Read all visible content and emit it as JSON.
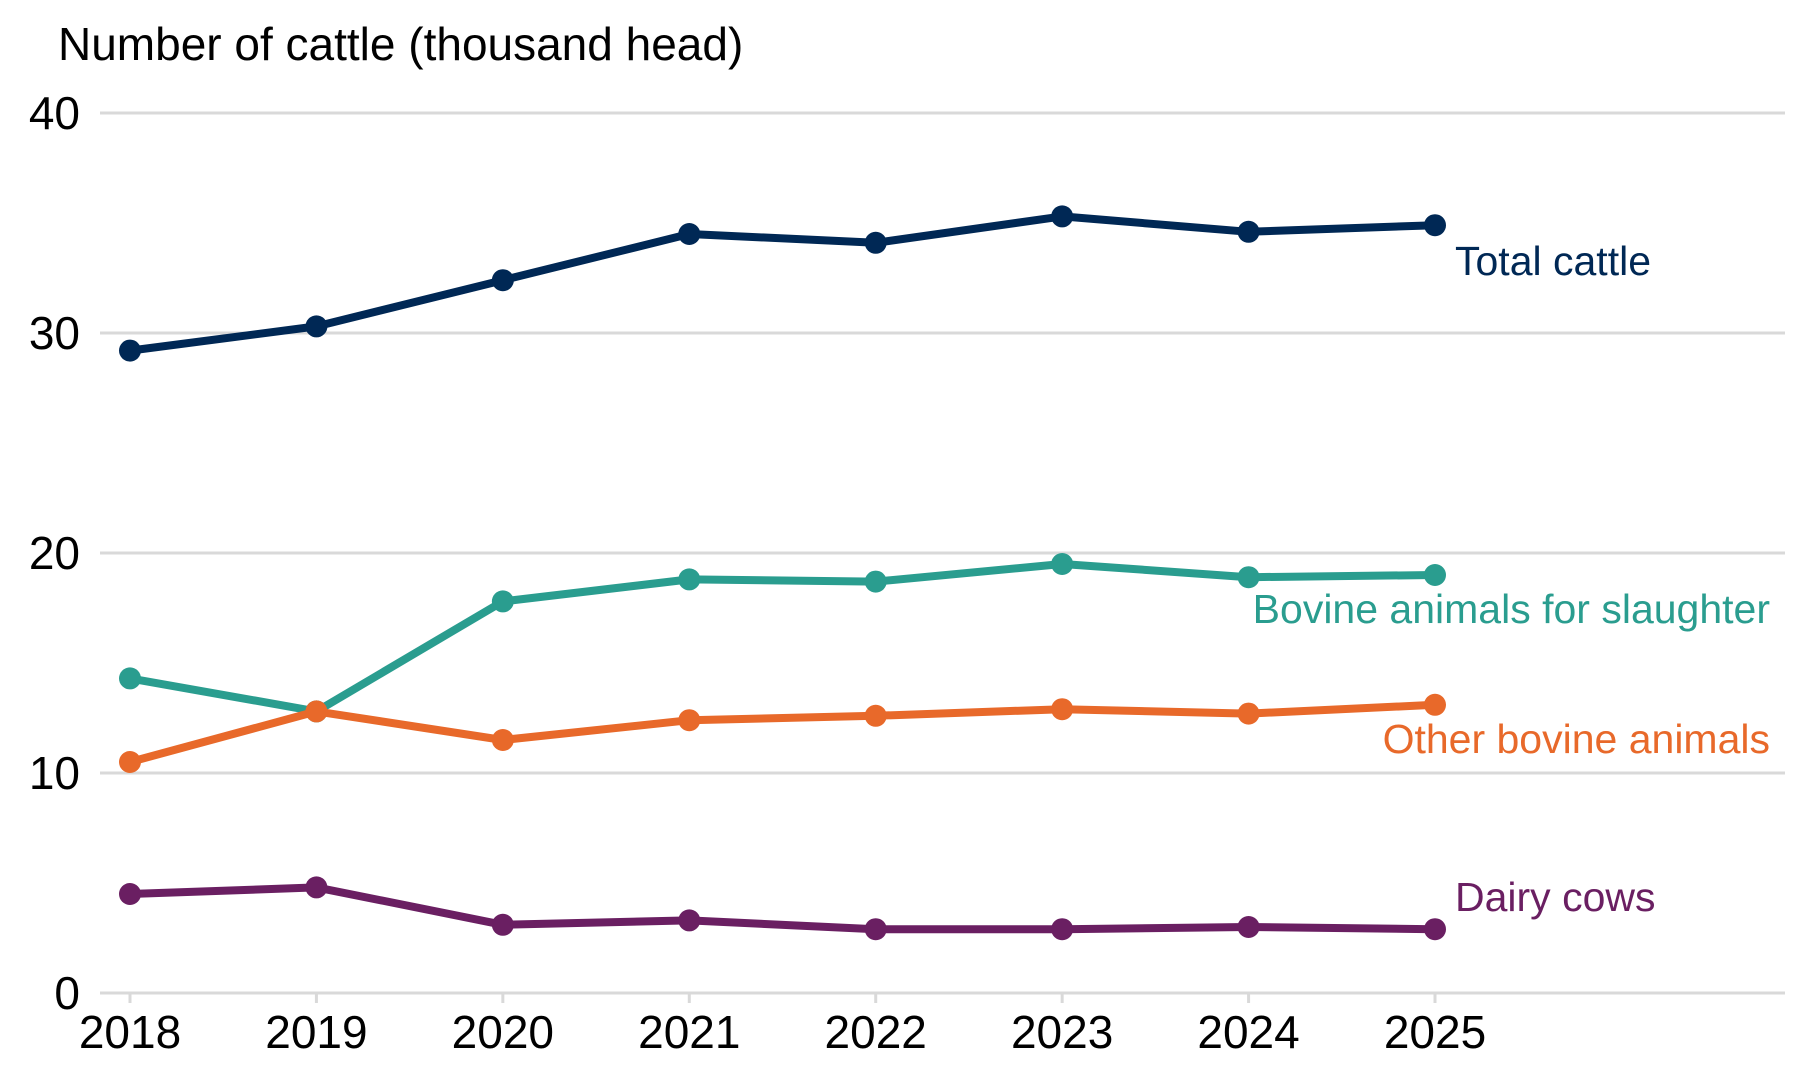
{
  "chart_data": {
    "type": "line",
    "ylabel": "Number of cattle (thousand head)",
    "x": [
      "2018",
      "2019",
      "2020",
      "2021",
      "2022",
      "2023",
      "2024",
      "2025"
    ],
    "ylim": [
      0,
      40
    ],
    "yticks": [
      "0",
      "10",
      "20",
      "30",
      "40"
    ],
    "grid": true,
    "legend": "direct labels at line ends",
    "series": [
      {
        "name": "Total cattle",
        "color": "#002855",
        "values": [
          29.2,
          30.3,
          32.4,
          34.5,
          34.1,
          35.3,
          34.6,
          34.9
        ]
      },
      {
        "name": "Bovine animals for slaughter",
        "color": "#2a9d8f",
        "values": [
          14.3,
          12.8,
          17.8,
          18.8,
          18.7,
          19.5,
          18.9,
          19.0
        ]
      },
      {
        "name": "Other bovine animals",
        "color": "#e8692a",
        "values": [
          10.5,
          12.8,
          11.5,
          12.4,
          12.6,
          12.9,
          12.7,
          13.1
        ]
      },
      {
        "name": "Dairy cows",
        "color": "#6a1f62",
        "values": [
          4.5,
          4.8,
          3.1,
          3.3,
          2.9,
          2.9,
          3.0,
          2.9
        ]
      }
    ]
  }
}
